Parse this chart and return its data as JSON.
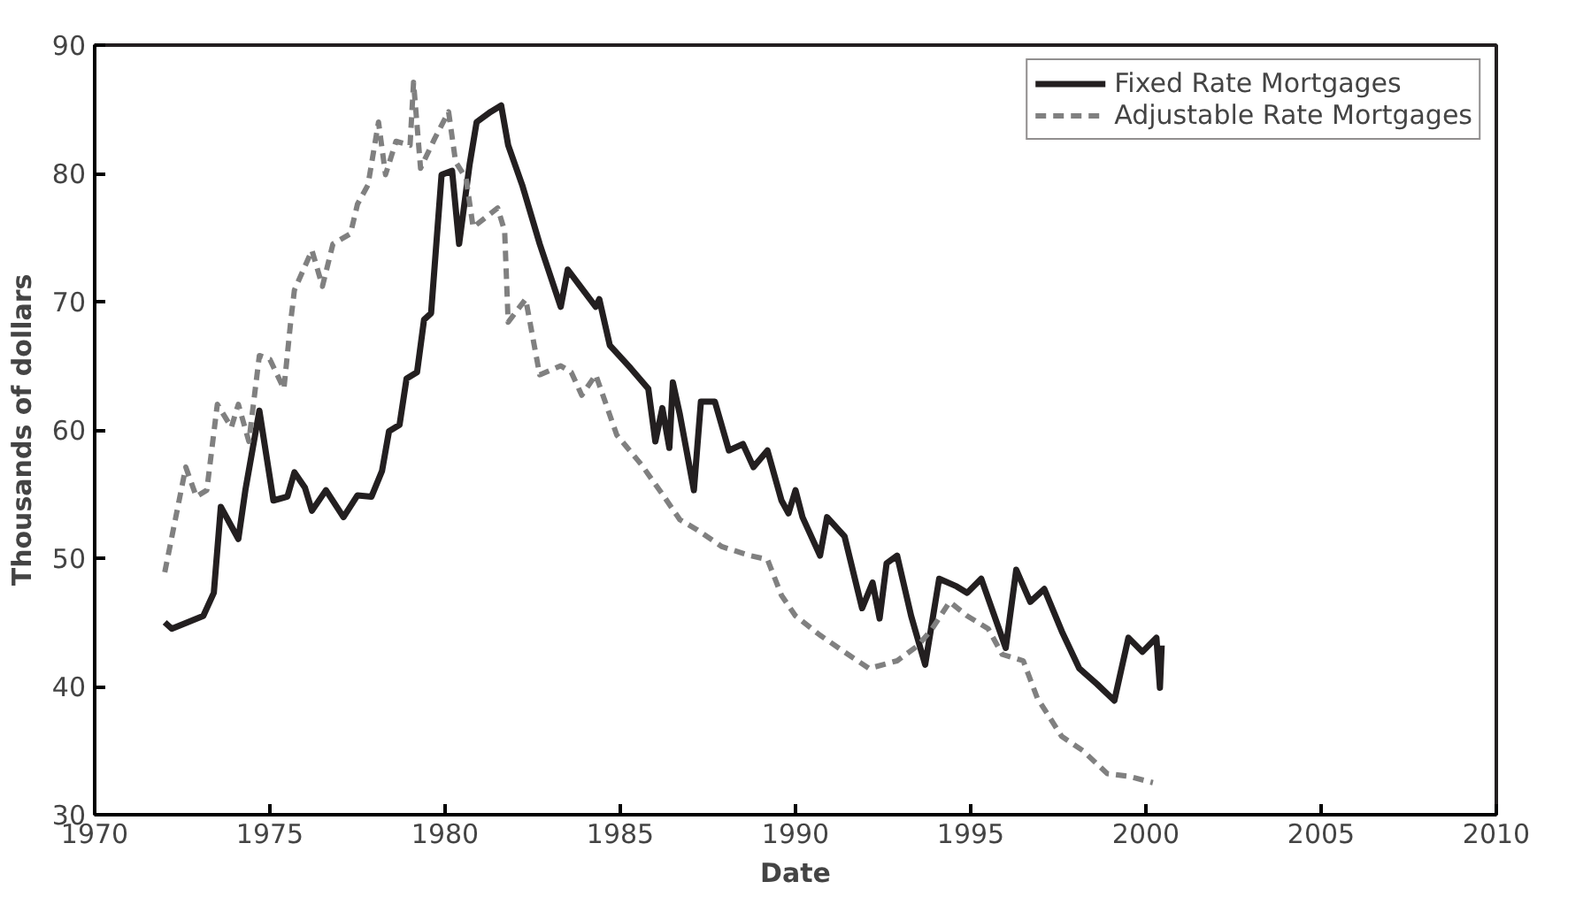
{
  "chart_data": {
    "type": "line",
    "xlabel": "Date",
    "ylabel": "Thousands of dollars",
    "xlim": [
      1970,
      2010
    ],
    "xticks": [
      1970,
      1975,
      1980,
      1985,
      1990,
      1995,
      2000,
      2005,
      2010
    ],
    "ylim": [
      30,
      90
    ],
    "yticks": [
      30,
      40,
      50,
      60,
      70,
      80,
      90
    ],
    "grid": false,
    "legend": "top right",
    "series": [
      {
        "name": "Fixed Rate Mortgages",
        "color": "#231f20",
        "line_style": "solid",
        "x": [
          1972.0,
          1972.2,
          1973.1,
          1973.4,
          1973.6,
          1973.9,
          1974.1,
          1974.3,
          1974.7,
          1975.1,
          1975.5,
          1975.7,
          1976.0,
          1976.2,
          1976.6,
          1977.1,
          1977.5,
          1977.9,
          1978.2,
          1978.4,
          1978.7,
          1978.9,
          1979.2,
          1979.4,
          1979.6,
          1979.9,
          1980.2,
          1980.4,
          1980.7,
          1980.9,
          1981.3,
          1981.6,
          1981.8,
          1982.2,
          1982.7,
          1983.3,
          1983.5,
          1983.8,
          1984.3,
          1984.4,
          1984.7,
          1985.3,
          1985.8,
          1986.0,
          1986.2,
          1986.4,
          1986.5,
          1986.7,
          1987.1,
          1987.3,
          1987.7,
          1988.1,
          1988.5,
          1988.8,
          1989.2,
          1989.6,
          1989.8,
          1990.0,
          1990.2,
          1990.7,
          1990.9,
          1991.4,
          1991.9,
          1992.2,
          1992.4,
          1992.6,
          1992.9,
          1993.3,
          1993.7,
          1994.1,
          1994.6,
          1994.9,
          1995.3,
          1996.0,
          1996.3,
          1996.7,
          1997.1,
          1997.6,
          1998.1,
          1998.6,
          1999.1,
          1999.5,
          1999.9,
          2000.3,
          2000.4,
          2000.45
        ],
        "values": [
          45.0,
          44.5,
          45.5,
          47.3,
          54.0,
          52.5,
          51.5,
          55.3,
          61.5,
          54.5,
          54.8,
          56.7,
          55.5,
          53.7,
          55.3,
          53.2,
          54.9,
          54.8,
          56.8,
          59.9,
          60.4,
          64.0,
          64.5,
          68.6,
          69.1,
          79.9,
          80.2,
          74.5,
          80.7,
          84.0,
          84.8,
          85.3,
          82.2,
          79.1,
          74.5,
          69.6,
          72.5,
          71.4,
          69.6,
          70.2,
          66.6,
          64.8,
          63.2,
          59.1,
          61.7,
          58.6,
          63.7,
          61.2,
          55.3,
          62.2,
          62.2,
          58.4,
          58.9,
          57.1,
          58.4,
          54.5,
          53.5,
          55.3,
          53.2,
          50.2,
          53.2,
          51.7,
          46.1,
          48.1,
          45.3,
          49.6,
          50.2,
          45.5,
          41.7,
          48.4,
          47.8,
          47.3,
          48.4,
          43.0,
          49.1,
          46.6,
          47.6,
          44.3,
          41.4,
          40.2,
          38.9,
          43.8,
          42.7,
          43.8,
          39.9,
          43.2
        ]
      },
      {
        "name": "Adjustable Rate Mortgages",
        "color": "#808080",
        "line_style": "dashed",
        "x": [
          1972.0,
          1972.3,
          1972.6,
          1972.9,
          1973.2,
          1973.5,
          1973.9,
          1974.1,
          1974.4,
          1974.7,
          1975.0,
          1975.4,
          1975.6,
          1975.7,
          1976.2,
          1976.5,
          1976.8,
          1977.3,
          1977.5,
          1977.8,
          1978.1,
          1978.3,
          1978.6,
          1979.0,
          1979.1,
          1979.3,
          1979.7,
          1980.1,
          1980.3,
          1980.6,
          1980.8,
          1981.5,
          1981.7,
          1981.8,
          1982.3,
          1982.7,
          1983.3,
          1983.6,
          1983.9,
          1984.3,
          1984.9,
          1985.6,
          1986.2,
          1986.7,
          1987.2,
          1987.9,
          1988.7,
          1989.2,
          1989.6,
          1990.0,
          1990.7,
          1991.5,
          1992.1,
          1992.9,
          1993.5,
          1993.9,
          1994.4,
          1994.9,
          1995.5,
          1995.9,
          1996.5,
          1996.9,
          1997.6,
          1998.2,
          1998.9,
          1999.5,
          2000.2
        ],
        "values": [
          48.9,
          53.0,
          57.1,
          54.8,
          55.3,
          62.0,
          60.2,
          62.0,
          59.1,
          65.8,
          65.5,
          63.2,
          68.6,
          70.9,
          74.0,
          71.2,
          74.5,
          75.3,
          77.6,
          79.1,
          84.0,
          79.9,
          82.5,
          82.2,
          87.1,
          80.4,
          82.7,
          84.8,
          80.9,
          79.6,
          75.8,
          77.3,
          75.5,
          68.4,
          70.2,
          64.3,
          65.0,
          64.5,
          62.7,
          64.3,
          59.6,
          57.3,
          55.0,
          53.0,
          52.2,
          50.9,
          50.2,
          49.9,
          47.1,
          45.5,
          44.0,
          42.5,
          41.4,
          42.0,
          43.2,
          44.5,
          46.6,
          45.5,
          44.5,
          42.5,
          42.0,
          39.1,
          36.1,
          35.0,
          33.2,
          33.0,
          32.5
        ]
      }
    ]
  }
}
